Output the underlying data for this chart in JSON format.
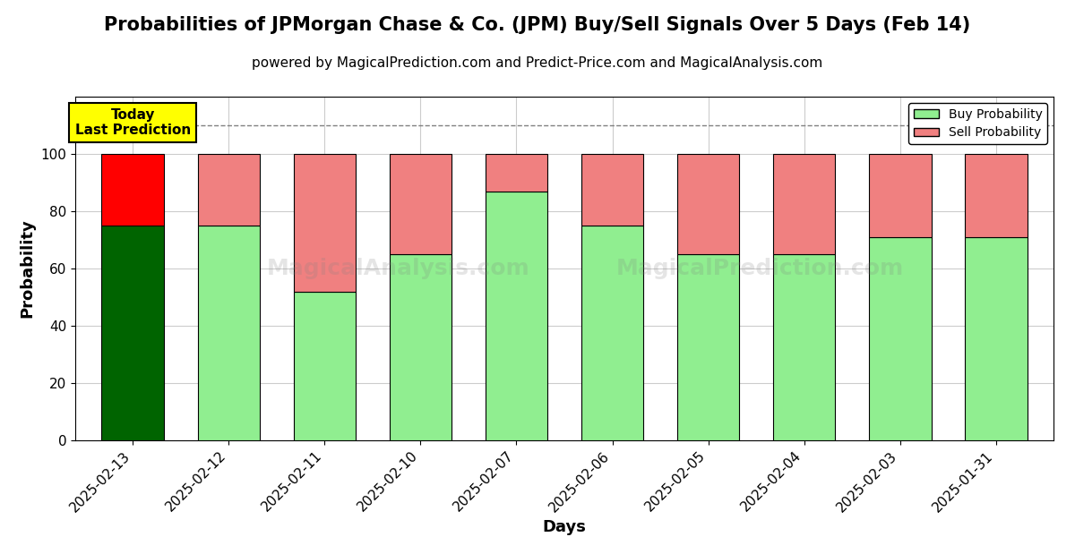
{
  "title": "Probabilities of JPMorgan Chase & Co. (JPM) Buy/Sell Signals Over 5 Days (Feb 14)",
  "subtitle": "powered by MagicalPrediction.com and Predict-Price.com and MagicalAnalysis.com",
  "xlabel": "Days",
  "ylabel": "Probability",
  "dates": [
    "2025-02-13",
    "2025-02-12",
    "2025-02-11",
    "2025-02-10",
    "2025-02-07",
    "2025-02-06",
    "2025-02-05",
    "2025-02-04",
    "2025-02-03",
    "2025-01-31"
  ],
  "buy_probs": [
    75,
    75,
    52,
    65,
    87,
    75,
    65,
    65,
    71,
    71
  ],
  "sell_probs": [
    25,
    25,
    48,
    35,
    13,
    25,
    35,
    35,
    29,
    29
  ],
  "today_buy_color": "#006400",
  "today_sell_color": "#FF0000",
  "buy_color": "#90EE90",
  "sell_color": "#F08080",
  "today_annotation": "Today\nLast Prediction",
  "ylim": [
    0,
    120
  ],
  "dashed_line_y": 110,
  "legend_buy": "Buy Probability",
  "legend_sell": "Sell Probability",
  "background_color": "#ffffff",
  "grid_color": "#cccccc",
  "title_fontsize": 15,
  "subtitle_fontsize": 11,
  "axis_label_fontsize": 13,
  "tick_fontsize": 11,
  "bar_width": 0.65
}
